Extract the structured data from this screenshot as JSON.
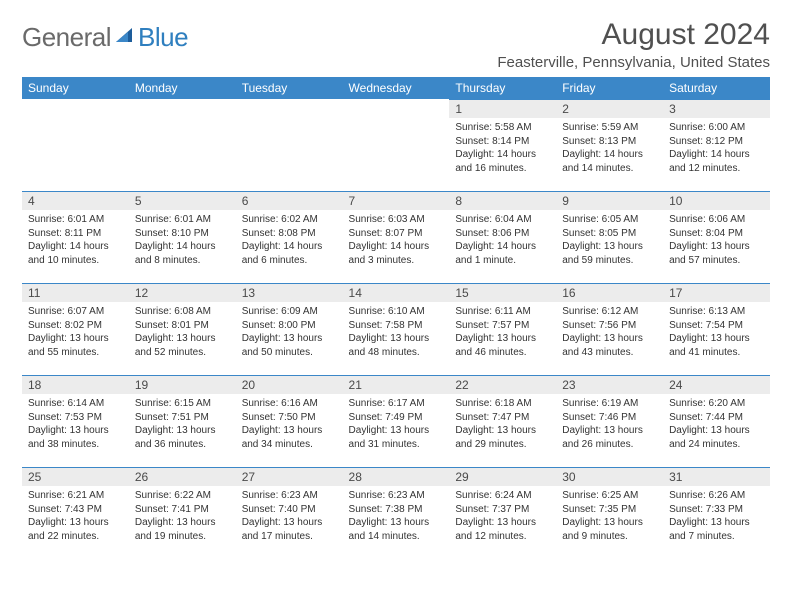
{
  "logo": {
    "text1": "General",
    "text2": "Blue"
  },
  "title": "August 2024",
  "location": "Feasterville, Pennsylvania, United States",
  "colors": {
    "header_bg": "#3b87c8",
    "header_text": "#ffffff",
    "daynum_bg": "#ececec",
    "border": "#3b87c8",
    "logo_gray": "#6a6a6a",
    "logo_blue": "#2f7fbf"
  },
  "day_headers": [
    "Sunday",
    "Monday",
    "Tuesday",
    "Wednesday",
    "Thursday",
    "Friday",
    "Saturday"
  ],
  "weeks": [
    [
      null,
      null,
      null,
      null,
      {
        "n": "1",
        "sr": "Sunrise: 5:58 AM",
        "ss": "Sunset: 8:14 PM",
        "dl": "Daylight: 14 hours and 16 minutes."
      },
      {
        "n": "2",
        "sr": "Sunrise: 5:59 AM",
        "ss": "Sunset: 8:13 PM",
        "dl": "Daylight: 14 hours and 14 minutes."
      },
      {
        "n": "3",
        "sr": "Sunrise: 6:00 AM",
        "ss": "Sunset: 8:12 PM",
        "dl": "Daylight: 14 hours and 12 minutes."
      }
    ],
    [
      {
        "n": "4",
        "sr": "Sunrise: 6:01 AM",
        "ss": "Sunset: 8:11 PM",
        "dl": "Daylight: 14 hours and 10 minutes."
      },
      {
        "n": "5",
        "sr": "Sunrise: 6:01 AM",
        "ss": "Sunset: 8:10 PM",
        "dl": "Daylight: 14 hours and 8 minutes."
      },
      {
        "n": "6",
        "sr": "Sunrise: 6:02 AM",
        "ss": "Sunset: 8:08 PM",
        "dl": "Daylight: 14 hours and 6 minutes."
      },
      {
        "n": "7",
        "sr": "Sunrise: 6:03 AM",
        "ss": "Sunset: 8:07 PM",
        "dl": "Daylight: 14 hours and 3 minutes."
      },
      {
        "n": "8",
        "sr": "Sunrise: 6:04 AM",
        "ss": "Sunset: 8:06 PM",
        "dl": "Daylight: 14 hours and 1 minute."
      },
      {
        "n": "9",
        "sr": "Sunrise: 6:05 AM",
        "ss": "Sunset: 8:05 PM",
        "dl": "Daylight: 13 hours and 59 minutes."
      },
      {
        "n": "10",
        "sr": "Sunrise: 6:06 AM",
        "ss": "Sunset: 8:04 PM",
        "dl": "Daylight: 13 hours and 57 minutes."
      }
    ],
    [
      {
        "n": "11",
        "sr": "Sunrise: 6:07 AM",
        "ss": "Sunset: 8:02 PM",
        "dl": "Daylight: 13 hours and 55 minutes."
      },
      {
        "n": "12",
        "sr": "Sunrise: 6:08 AM",
        "ss": "Sunset: 8:01 PM",
        "dl": "Daylight: 13 hours and 52 minutes."
      },
      {
        "n": "13",
        "sr": "Sunrise: 6:09 AM",
        "ss": "Sunset: 8:00 PM",
        "dl": "Daylight: 13 hours and 50 minutes."
      },
      {
        "n": "14",
        "sr": "Sunrise: 6:10 AM",
        "ss": "Sunset: 7:58 PM",
        "dl": "Daylight: 13 hours and 48 minutes."
      },
      {
        "n": "15",
        "sr": "Sunrise: 6:11 AM",
        "ss": "Sunset: 7:57 PM",
        "dl": "Daylight: 13 hours and 46 minutes."
      },
      {
        "n": "16",
        "sr": "Sunrise: 6:12 AM",
        "ss": "Sunset: 7:56 PM",
        "dl": "Daylight: 13 hours and 43 minutes."
      },
      {
        "n": "17",
        "sr": "Sunrise: 6:13 AM",
        "ss": "Sunset: 7:54 PM",
        "dl": "Daylight: 13 hours and 41 minutes."
      }
    ],
    [
      {
        "n": "18",
        "sr": "Sunrise: 6:14 AM",
        "ss": "Sunset: 7:53 PM",
        "dl": "Daylight: 13 hours and 38 minutes."
      },
      {
        "n": "19",
        "sr": "Sunrise: 6:15 AM",
        "ss": "Sunset: 7:51 PM",
        "dl": "Daylight: 13 hours and 36 minutes."
      },
      {
        "n": "20",
        "sr": "Sunrise: 6:16 AM",
        "ss": "Sunset: 7:50 PM",
        "dl": "Daylight: 13 hours and 34 minutes."
      },
      {
        "n": "21",
        "sr": "Sunrise: 6:17 AM",
        "ss": "Sunset: 7:49 PM",
        "dl": "Daylight: 13 hours and 31 minutes."
      },
      {
        "n": "22",
        "sr": "Sunrise: 6:18 AM",
        "ss": "Sunset: 7:47 PM",
        "dl": "Daylight: 13 hours and 29 minutes."
      },
      {
        "n": "23",
        "sr": "Sunrise: 6:19 AM",
        "ss": "Sunset: 7:46 PM",
        "dl": "Daylight: 13 hours and 26 minutes."
      },
      {
        "n": "24",
        "sr": "Sunrise: 6:20 AM",
        "ss": "Sunset: 7:44 PM",
        "dl": "Daylight: 13 hours and 24 minutes."
      }
    ],
    [
      {
        "n": "25",
        "sr": "Sunrise: 6:21 AM",
        "ss": "Sunset: 7:43 PM",
        "dl": "Daylight: 13 hours and 22 minutes."
      },
      {
        "n": "26",
        "sr": "Sunrise: 6:22 AM",
        "ss": "Sunset: 7:41 PM",
        "dl": "Daylight: 13 hours and 19 minutes."
      },
      {
        "n": "27",
        "sr": "Sunrise: 6:23 AM",
        "ss": "Sunset: 7:40 PM",
        "dl": "Daylight: 13 hours and 17 minutes."
      },
      {
        "n": "28",
        "sr": "Sunrise: 6:23 AM",
        "ss": "Sunset: 7:38 PM",
        "dl": "Daylight: 13 hours and 14 minutes."
      },
      {
        "n": "29",
        "sr": "Sunrise: 6:24 AM",
        "ss": "Sunset: 7:37 PM",
        "dl": "Daylight: 13 hours and 12 minutes."
      },
      {
        "n": "30",
        "sr": "Sunrise: 6:25 AM",
        "ss": "Sunset: 7:35 PM",
        "dl": "Daylight: 13 hours and 9 minutes."
      },
      {
        "n": "31",
        "sr": "Sunrise: 6:26 AM",
        "ss": "Sunset: 7:33 PM",
        "dl": "Daylight: 13 hours and 7 minutes."
      }
    ]
  ]
}
